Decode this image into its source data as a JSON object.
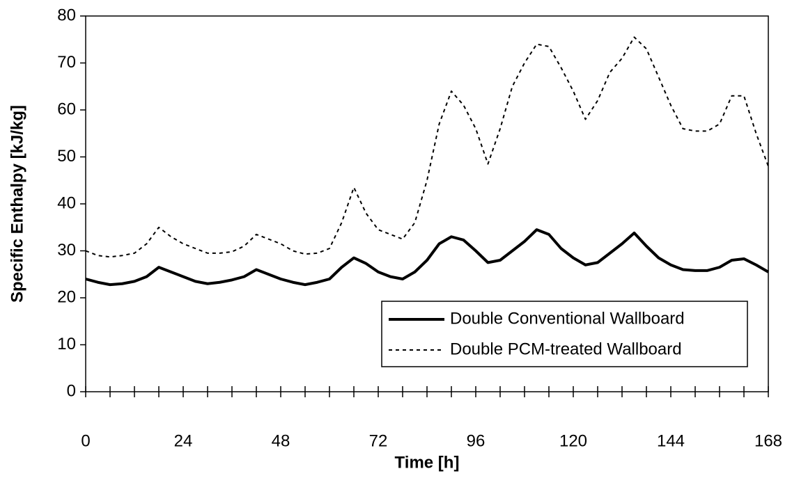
{
  "chart_data": {
    "type": "line",
    "xlabel": "Time [h]",
    "ylabel": "Specific Enthalpy [kJ/kg]",
    "x": [
      0,
      3,
      6,
      9,
      12,
      15,
      18,
      21,
      24,
      27,
      30,
      33,
      36,
      39,
      42,
      45,
      48,
      51,
      54,
      57,
      60,
      63,
      66,
      69,
      72,
      75,
      78,
      81,
      84,
      87,
      90,
      93,
      96,
      99,
      102,
      105,
      108,
      111,
      114,
      117,
      120,
      123,
      126,
      129,
      132,
      135,
      138,
      141,
      144,
      147,
      150,
      153,
      156,
      159,
      162,
      165,
      168
    ],
    "series": [
      {
        "name": "Double Conventional Wallboard",
        "color": "#000000",
        "dash": false,
        "values": [
          24,
          23.3,
          22.8,
          23,
          23.5,
          24.5,
          26.5,
          25.5,
          24.5,
          23.5,
          23,
          23.3,
          23.8,
          24.5,
          26,
          25,
          24,
          23.3,
          22.8,
          23.3,
          24,
          26.5,
          28.5,
          27.3,
          25.5,
          24.5,
          24,
          25.5,
          28,
          31.5,
          33,
          32.3,
          30,
          27.5,
          28,
          30,
          32,
          34.5,
          33.5,
          30.5,
          28.5,
          27,
          27.5,
          29.5,
          31.5,
          33.8,
          31,
          28.5,
          27,
          26,
          25.8,
          25.8,
          26.5,
          28,
          28.3,
          27,
          25.5
        ]
      },
      {
        "name": "Double PCM-treated Wallboard",
        "color": "#000000",
        "dash": true,
        "values": [
          30,
          29,
          28.7,
          29,
          29.5,
          31.5,
          35,
          33,
          31.5,
          30.5,
          29.5,
          29.5,
          29.8,
          31,
          33.5,
          32.5,
          31.5,
          30,
          29.3,
          29.5,
          30.5,
          36,
          43.5,
          38,
          34.5,
          33.5,
          32.5,
          36,
          45,
          57,
          64,
          61,
          56,
          48.5,
          56,
          65,
          70,
          74,
          73.5,
          69,
          64,
          58,
          62,
          68,
          71,
          75.5,
          73,
          67,
          61,
          56,
          55.5,
          55.5,
          57,
          63,
          63,
          55,
          48
        ]
      }
    ],
    "xlim": [
      0,
      168
    ],
    "xticks": [
      0,
      24,
      48,
      72,
      96,
      120,
      144,
      168
    ],
    "xminorticks": [
      6,
      12,
      18,
      30,
      36,
      42,
      54,
      60,
      66,
      78,
      84,
      90,
      102,
      108,
      114,
      126,
      132,
      138,
      150,
      156,
      162
    ],
    "ylim": [
      0,
      80
    ],
    "yticks": [
      0,
      10,
      20,
      30,
      40,
      50,
      60,
      70,
      80
    ],
    "legend": "lower right"
  }
}
